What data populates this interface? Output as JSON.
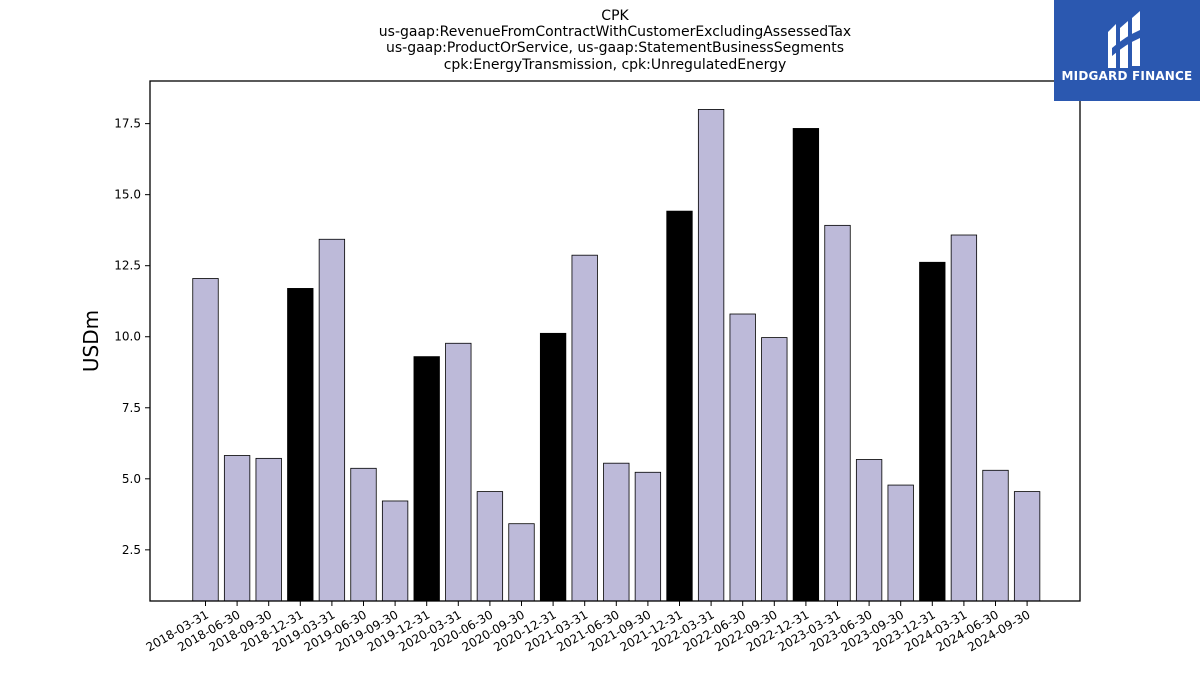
{
  "logo": {
    "text": "MIDGARD FINANCE",
    "background": "#2b58b0"
  },
  "colors": {
    "bar_regular": "#bdbad9",
    "bar_highlight": "#000000",
    "edge": "#000000"
  },
  "chart_data": {
    "type": "bar",
    "title_lines": [
      "CPK",
      "us-gaap:RevenueFromContractWithCustomerExcludingAssessedTax",
      "us-gaap:ProductOrService, us-gaap:StatementBusinessSegments",
      "cpk:EnergyTransmission, cpk:UnregulatedEnergy"
    ],
    "ylabel": "USDm",
    "xlabel": "",
    "ylim": [
      0.7,
      19.0
    ],
    "yticks": [
      2.5,
      5.0,
      7.5,
      10.0,
      12.5,
      15.0,
      17.5
    ],
    "grid": false,
    "categories": [
      "2018-03-31",
      "2018-06-30",
      "2018-09-30",
      "2018-12-31",
      "2019-03-31",
      "2019-06-30",
      "2019-09-30",
      "2019-12-31",
      "2020-03-31",
      "2020-06-30",
      "2020-09-30",
      "2020-12-31",
      "2021-03-31",
      "2021-06-30",
      "2021-09-30",
      "2021-12-31",
      "2022-03-31",
      "2022-06-30",
      "2022-09-30",
      "2022-12-31",
      "2023-03-31",
      "2023-06-30",
      "2023-09-30",
      "2023-12-31",
      "2024-03-31",
      "2024-06-30",
      "2024-09-30"
    ],
    "values": [
      12.05,
      5.82,
      5.72,
      11.7,
      13.43,
      5.37,
      4.22,
      9.3,
      9.77,
      4.55,
      3.42,
      10.12,
      12.87,
      5.55,
      5.23,
      14.42,
      18.0,
      10.8,
      9.97,
      17.33,
      13.92,
      5.68,
      4.78,
      12.62,
      13.58,
      5.3,
      4.55
    ],
    "highlight": [
      "2018-12-31",
      "2019-12-31",
      "2020-12-31",
      "2021-12-31",
      "2022-12-31",
      "2023-12-31"
    ]
  }
}
